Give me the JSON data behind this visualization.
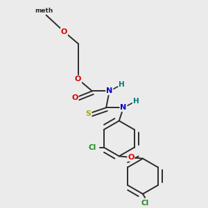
{
  "background_color": "#ebebeb",
  "bond_color": "#2a2a2a",
  "atom_colors": {
    "O": "#dd0000",
    "N": "#0000cc",
    "S": "#aaaa00",
    "Cl": "#228822",
    "H": "#007777",
    "C": "#2a2a2a",
    "meth": "#2a2a2a"
  },
  "figsize": [
    3.0,
    3.0
  ],
  "dpi": 100
}
